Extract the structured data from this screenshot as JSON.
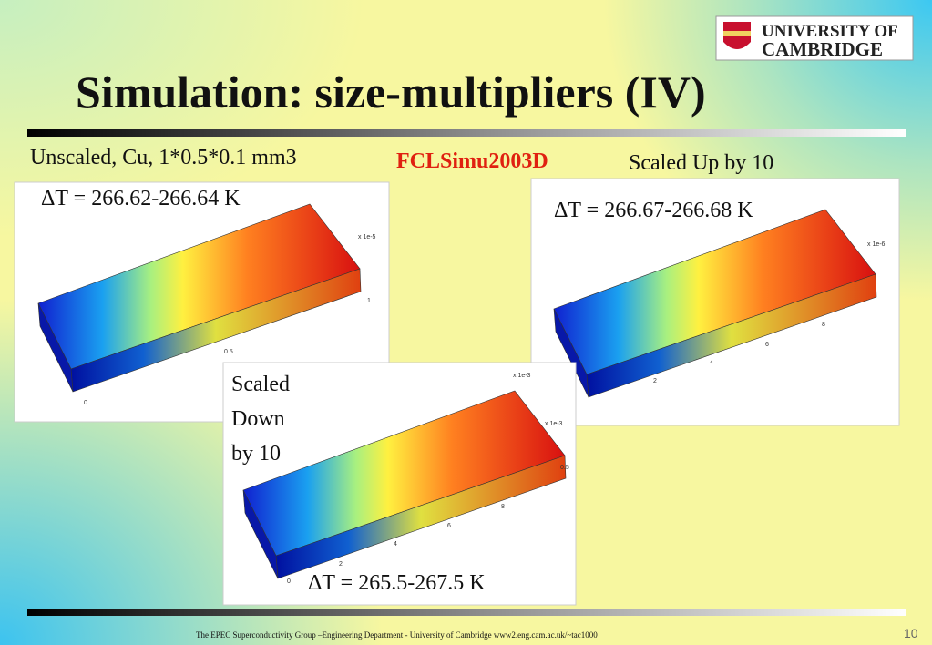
{
  "header": {
    "title": "Simulation: size-multipliers (IV)",
    "logo": {
      "line1": "UNIVERSITY OF",
      "line2": "CAMBRIDGE"
    }
  },
  "labels": {
    "left": "Unscaled, Cu, 1*0.5*0.1 mm3",
    "center": "FCLSimu2003D",
    "right": "Scaled Up by 10"
  },
  "panels": [
    {
      "delta": "ΔT = 266.62-266.64 K",
      "axis_labels": [
        "x 1e-5",
        "0.5",
        "0",
        "1"
      ]
    },
    {
      "delta": "ΔT = 266.67-266.68 K",
      "axis_labels": [
        "x 1e-6",
        "2",
        "4",
        "6",
        "8"
      ]
    },
    {
      "delta": "ΔT = 265.5-267.5 K",
      "caption": [
        "Scaled",
        "Down",
        "by 10"
      ],
      "axis_labels": [
        "x 1e-3",
        "x 1e-3",
        "2",
        "4",
        "6",
        "8",
        "0",
        "0.5"
      ]
    }
  ],
  "footer": {
    "text": "The EPEC Superconductivity Group –Engineering Department -  University of Cambridge www2.eng.cam.ac.uk/~tac1000",
    "page": "10"
  }
}
